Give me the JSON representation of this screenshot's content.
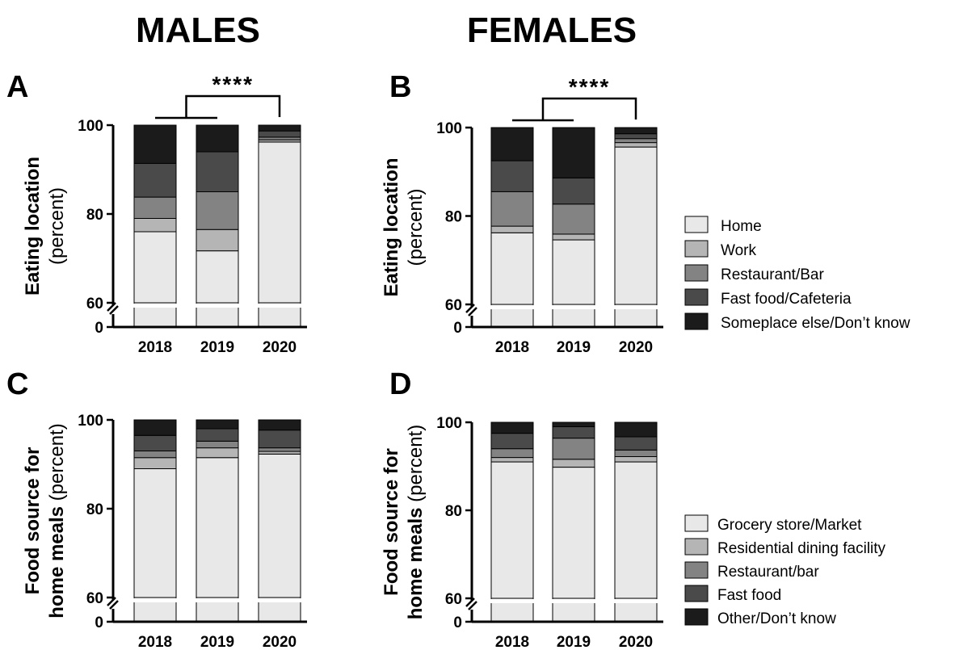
{
  "columns": {
    "left": "MALES",
    "right": "FEMALES"
  },
  "colors": {
    "cat1": "#e8e8e8",
    "cat2": "#b5b5b5",
    "cat3": "#838383",
    "cat4": "#4a4a4a",
    "cat5": "#1b1b1b"
  },
  "legend_top": [
    "Home",
    "Work",
    "Restaurant/Bar",
    "Fast food/Cafeteria",
    "Someplace else/Don’t know"
  ],
  "legend_bottom": [
    "Grocery store/Market",
    "Residential dining facility",
    "Restaurant/bar",
    "Fast food",
    "Other/Don’t know"
  ],
  "chart_data": [
    {
      "panel": "A",
      "type": "bar",
      "stacked": true,
      "xlabel": "",
      "ylabel": "Eating location",
      "ylabel_unit": "(percent)",
      "categories": [
        "2018",
        "2019",
        "2020"
      ],
      "yticks": [
        "0",
        "60",
        "80",
        "100"
      ],
      "axis_break": [
        0,
        60
      ],
      "ylim": [
        60,
        100
      ],
      "significance": "****",
      "series": [
        {
          "name": "Home",
          "values": [
            76.0,
            71.7,
            96.2
          ]
        },
        {
          "name": "Work",
          "values": [
            3.0,
            4.8,
            0.5
          ]
        },
        {
          "name": "Restaurant/Bar",
          "values": [
            4.8,
            8.5,
            0.6
          ]
        },
        {
          "name": "Fast food/Cafeteria",
          "values": [
            7.6,
            9.0,
            1.4
          ]
        },
        {
          "name": "Someplace else/Don’t know",
          "values": [
            8.6,
            6.0,
            1.3
          ]
        }
      ]
    },
    {
      "panel": "B",
      "type": "bar",
      "stacked": true,
      "xlabel": "",
      "ylabel": "Eating location",
      "ylabel_unit": "(percent)",
      "categories": [
        "2018",
        "2019",
        "2020"
      ],
      "yticks": [
        "0",
        "60",
        "80",
        "100"
      ],
      "axis_break": [
        0,
        60
      ],
      "ylim": [
        60,
        100
      ],
      "significance": "****",
      "series": [
        {
          "name": "Home",
          "values": [
            76.2,
            74.6,
            95.6
          ]
        },
        {
          "name": "Work",
          "values": [
            1.5,
            1.3,
            1.0
          ]
        },
        {
          "name": "Restaurant/Bar",
          "values": [
            7.8,
            6.8,
            0.9
          ]
        },
        {
          "name": "Fast food/Cafeteria",
          "values": [
            7.0,
            5.9,
            1.1
          ]
        },
        {
          "name": "Someplace else/Don’t know",
          "values": [
            7.5,
            11.4,
            1.4
          ]
        }
      ]
    },
    {
      "panel": "C",
      "type": "bar",
      "stacked": true,
      "xlabel": "",
      "ylabel": "Food source for",
      "ylabel_line2": "home meals",
      "ylabel_unit": "(percent)",
      "categories": [
        "2018",
        "2019",
        "2020"
      ],
      "yticks": [
        "0",
        "60",
        "80",
        "100"
      ],
      "axis_break": [
        0,
        60
      ],
      "ylim": [
        60,
        100
      ],
      "series": [
        {
          "name": "Grocery store/Market",
          "values": [
            89.0,
            91.5,
            92.3
          ]
        },
        {
          "name": "Residential dining facility",
          "values": [
            2.5,
            2.2,
            0.6
          ]
        },
        {
          "name": "Restaurant/bar",
          "values": [
            1.5,
            1.5,
            0.8
          ]
        },
        {
          "name": "Fast food",
          "values": [
            3.5,
            2.8,
            4.0
          ]
        },
        {
          "name": "Other/Don’t know",
          "values": [
            3.5,
            2.0,
            2.3
          ]
        }
      ]
    },
    {
      "panel": "D",
      "type": "bar",
      "stacked": true,
      "xlabel": "",
      "ylabel": "Food source for",
      "ylabel_line2": "home meals",
      "ylabel_unit": "(percent)",
      "categories": [
        "2018",
        "2019",
        "2020"
      ],
      "yticks": [
        "0",
        "60",
        "80",
        "100"
      ],
      "axis_break": [
        0,
        60
      ],
      "ylim": [
        60,
        100
      ],
      "series": [
        {
          "name": "Grocery store/Market",
          "values": [
            91.0,
            89.8,
            91.0
          ]
        },
        {
          "name": "Residential dining facility",
          "values": [
            1.0,
            1.8,
            1.2
          ]
        },
        {
          "name": "Restaurant/bar",
          "values": [
            2.0,
            4.8,
            1.5
          ]
        },
        {
          "name": "Fast food",
          "values": [
            3.5,
            2.6,
            3.0
          ]
        },
        {
          "name": "Other/Don’t know",
          "values": [
            2.5,
            1.0,
            3.3
          ]
        }
      ]
    }
  ]
}
